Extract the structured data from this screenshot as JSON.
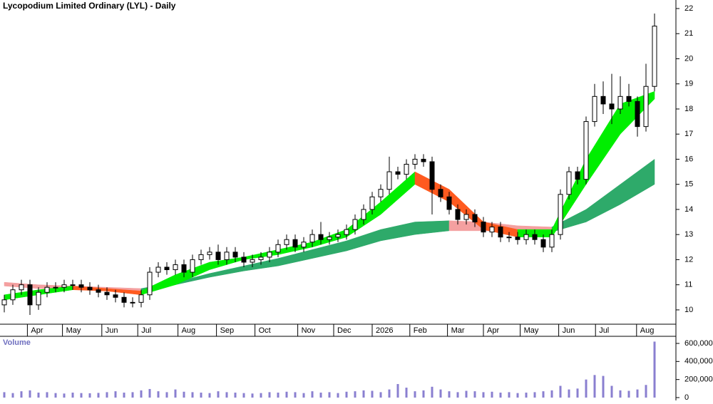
{
  "chart_data": {
    "type": "candlestick",
    "title": "Lycopodium Limited Ordinary (LYL) - Daily",
    "x": [
      0,
      1,
      2,
      3,
      4,
      5,
      6,
      7,
      8,
      9,
      10,
      11,
      12,
      13,
      14,
      15,
      16,
      17,
      18,
      19,
      20,
      21,
      22,
      23,
      24,
      25,
      26,
      27,
      28,
      29,
      30,
      31,
      32,
      33,
      34,
      35,
      36,
      37,
      38,
      39,
      40,
      41,
      42,
      43,
      44,
      45,
      46,
      47,
      48,
      49,
      50,
      51,
      52,
      53,
      54,
      55,
      56,
      57,
      58,
      59,
      60,
      61,
      62,
      63,
      64,
      65,
      66,
      67,
      68,
      69,
      70,
      71,
      72,
      73,
      74,
      75,
      76
    ],
    "open": [
      10.2,
      10.4,
      10.8,
      11.0,
      10.2,
      10.7,
      10.9,
      10.9,
      11.0,
      11.0,
      10.9,
      10.8,
      10.7,
      10.6,
      10.5,
      10.3,
      10.3,
      10.6,
      11.5,
      11.7,
      11.6,
      11.8,
      11.5,
      12.0,
      12.2,
      12.3,
      12.0,
      12.3,
      12.1,
      11.9,
      12.0,
      12.1,
      12.3,
      12.6,
      12.8,
      12.5,
      12.7,
      13.0,
      12.8,
      12.9,
      13.0,
      13.2,
      13.6,
      14.0,
      14.5,
      14.8,
      15.5,
      15.4,
      15.8,
      16.0,
      15.9,
      14.8,
      14.5,
      14.0,
      13.6,
      13.8,
      13.5,
      13.1,
      13.3,
      12.9,
      12.9,
      12.8,
      13.0,
      12.8,
      12.5,
      13.0,
      14.6,
      15.5,
      15.2,
      17.5,
      18.5,
      18.2,
      18.0,
      18.5,
      18.3,
      17.3,
      18.9
    ],
    "high": [
      10.6,
      11.0,
      11.2,
      11.2,
      10.9,
      11.1,
      11.1,
      11.2,
      11.2,
      11.2,
      11.1,
      11.0,
      10.9,
      10.8,
      10.7,
      10.5,
      10.8,
      11.7,
      11.9,
      11.9,
      12.0,
      12.0,
      12.2,
      12.4,
      12.5,
      12.6,
      12.5,
      12.5,
      12.3,
      12.2,
      12.3,
      12.5,
      12.8,
      13.0,
      13.0,
      12.9,
      13.2,
      13.5,
      13.1,
      13.2,
      13.4,
      13.8,
      14.2,
      14.7,
      15.0,
      16.1,
      15.7,
      16.0,
      16.2,
      16.2,
      16.1,
      15.0,
      14.7,
      14.2,
      14.0,
      14.0,
      13.7,
      13.5,
      13.5,
      13.1,
      13.1,
      13.2,
      13.2,
      13.0,
      13.2,
      14.8,
      15.7,
      15.7,
      17.7,
      19.0,
      19.1,
      19.4,
      19.3,
      19.0,
      18.5,
      19.8,
      21.8
    ],
    "low": [
      9.9,
      10.2,
      10.6,
      9.8,
      10.0,
      10.5,
      10.7,
      10.7,
      10.8,
      10.7,
      10.6,
      10.5,
      10.4,
      10.3,
      10.1,
      10.1,
      10.1,
      10.4,
      11.3,
      11.4,
      11.4,
      11.3,
      11.3,
      11.8,
      12.0,
      11.8,
      11.8,
      11.9,
      11.7,
      11.7,
      11.8,
      11.9,
      12.1,
      12.4,
      12.3,
      12.3,
      12.5,
      12.6,
      12.6,
      12.7,
      12.8,
      13.0,
      13.4,
      13.8,
      14.3,
      14.6,
      15.2,
      15.2,
      15.6,
      15.7,
      13.8,
      14.3,
      13.8,
      13.4,
      13.4,
      13.3,
      12.9,
      12.9,
      12.7,
      12.7,
      12.6,
      12.6,
      12.6,
      12.3,
      12.3,
      12.8,
      14.4,
      15.0,
      15.0,
      17.3,
      17.8,
      17.4,
      17.8,
      18.1,
      16.9,
      17.1,
      18.7
    ],
    "close": [
      10.4,
      10.8,
      11.0,
      10.2,
      10.7,
      10.9,
      10.9,
      11.0,
      11.0,
      10.9,
      10.8,
      10.7,
      10.6,
      10.5,
      10.3,
      10.3,
      10.6,
      11.5,
      11.7,
      11.6,
      11.8,
      11.5,
      12.0,
      12.2,
      12.3,
      12.0,
      12.3,
      12.1,
      11.9,
      12.0,
      12.1,
      12.3,
      12.6,
      12.8,
      12.5,
      12.7,
      13.0,
      12.8,
      12.9,
      13.0,
      13.2,
      13.6,
      14.0,
      14.5,
      14.8,
      15.5,
      15.4,
      15.8,
      16.0,
      15.9,
      14.8,
      14.5,
      14.0,
      13.6,
      13.8,
      13.5,
      13.1,
      13.3,
      12.9,
      12.9,
      12.8,
      13.0,
      12.8,
      12.5,
      13.0,
      14.6,
      15.5,
      15.2,
      17.5,
      18.5,
      18.2,
      18.0,
      18.5,
      18.3,
      17.3,
      18.9,
      21.3
    ],
    "ribbons": [
      {
        "x": [
          0,
          4,
          8,
          12,
          16,
          20,
          24,
          28,
          32,
          36,
          40,
          44,
          48,
          52,
          56,
          60,
          64,
          68,
          72,
          76
        ],
        "upper": [
          11.1,
          11.0,
          10.95,
          10.9,
          10.85,
          11.1,
          11.45,
          11.75,
          12.05,
          12.4,
          12.75,
          13.2,
          13.5,
          13.55,
          13.5,
          13.35,
          13.3,
          14.0,
          15.0,
          16.0
        ],
        "lower": [
          10.95,
          10.85,
          10.85,
          10.8,
          10.75,
          11.0,
          11.3,
          11.55,
          11.75,
          12.05,
          12.35,
          12.75,
          13.0,
          13.15,
          13.15,
          13.1,
          13.1,
          13.5,
          14.2,
          15.0
        ],
        "up_color": "#2eaa6a",
        "down_color": "#f4a0a0"
      },
      {
        "x": [
          0,
          4,
          8,
          12,
          16,
          20,
          24,
          28,
          32,
          36,
          40,
          44,
          48,
          52,
          56,
          60,
          64,
          68,
          72,
          76
        ],
        "upper": [
          10.6,
          10.8,
          10.95,
          10.85,
          10.75,
          11.4,
          11.9,
          12.1,
          12.4,
          12.7,
          13.2,
          14.3,
          15.5,
          14.8,
          13.5,
          13.2,
          13.2,
          16.0,
          18.2,
          18.7
        ],
        "lower": [
          10.4,
          10.6,
          10.8,
          10.75,
          10.6,
          11.0,
          11.6,
          12.0,
          12.2,
          12.5,
          12.9,
          13.8,
          15.0,
          14.3,
          13.2,
          12.9,
          12.9,
          15.0,
          17.0,
          18.4
        ],
        "up_color": "#00ee00",
        "down_color": "#ff5a1f"
      }
    ],
    "xlim": [
      -0.5,
      78.5
    ],
    "ylim": [
      9.43,
      22.34
    ],
    "yticks": [
      10,
      11,
      12,
      13,
      14,
      15,
      16,
      17,
      18,
      19,
      20,
      21,
      22
    ],
    "xticks": [
      {
        "value": 2.7,
        "label": "Apr"
      },
      {
        "value": 6.8,
        "label": "May"
      },
      {
        "value": 11.4,
        "label": "Jun"
      },
      {
        "value": 15.6,
        "label": "Jul"
      },
      {
        "value": 20.3,
        "label": "Aug"
      },
      {
        "value": 24.8,
        "label": "Sep"
      },
      {
        "value": 29.3,
        "label": "Oct"
      },
      {
        "value": 34.3,
        "label": "Nov"
      },
      {
        "value": 38.5,
        "label": "Dec"
      },
      {
        "value": 43,
        "label": "2026"
      },
      {
        "value": 47.4,
        "label": "Feb"
      },
      {
        "value": 51.8,
        "label": "Mar"
      },
      {
        "value": 56,
        "label": "Apr"
      },
      {
        "value": 60.3,
        "label": "May"
      },
      {
        "value": 64.8,
        "label": "Jun"
      },
      {
        "value": 69.1,
        "label": "Jul"
      },
      {
        "value": 73.9,
        "label": "Aug"
      }
    ],
    "volume": {
      "title": "Volume",
      "color": "#8a7fd0",
      "values": [
        60000,
        50000,
        70000,
        80000,
        55000,
        60000,
        50000,
        45000,
        55000,
        50000,
        48000,
        52000,
        60000,
        70000,
        55000,
        60000,
        80000,
        95000,
        70000,
        60000,
        90000,
        65000,
        60000,
        55000,
        50000,
        70000,
        60000,
        55000,
        50000,
        45000,
        50000,
        60000,
        55000,
        65000,
        60000,
        50000,
        70000,
        55000,
        60000,
        50000,
        65000,
        70000,
        80000,
        75000,
        60000,
        90000,
        150000,
        110000,
        70000,
        80000,
        120000,
        90000,
        70000,
        60000,
        75000,
        70000,
        60000,
        65000,
        55000,
        60000,
        50000,
        55000,
        60000,
        70000,
        80000,
        130000,
        90000,
        100000,
        200000,
        250000,
        240000,
        130000,
        80000,
        75000,
        90000,
        140000,
        620000
      ],
      "ylim": [
        0,
        655000
      ],
      "yticks": [
        0,
        {
          "value": 200000,
          "label": "200,000"
        },
        {
          "value": 400000,
          "label": "400,000"
        },
        {
          "value": 600000,
          "label": "600,000"
        }
      ]
    }
  }
}
